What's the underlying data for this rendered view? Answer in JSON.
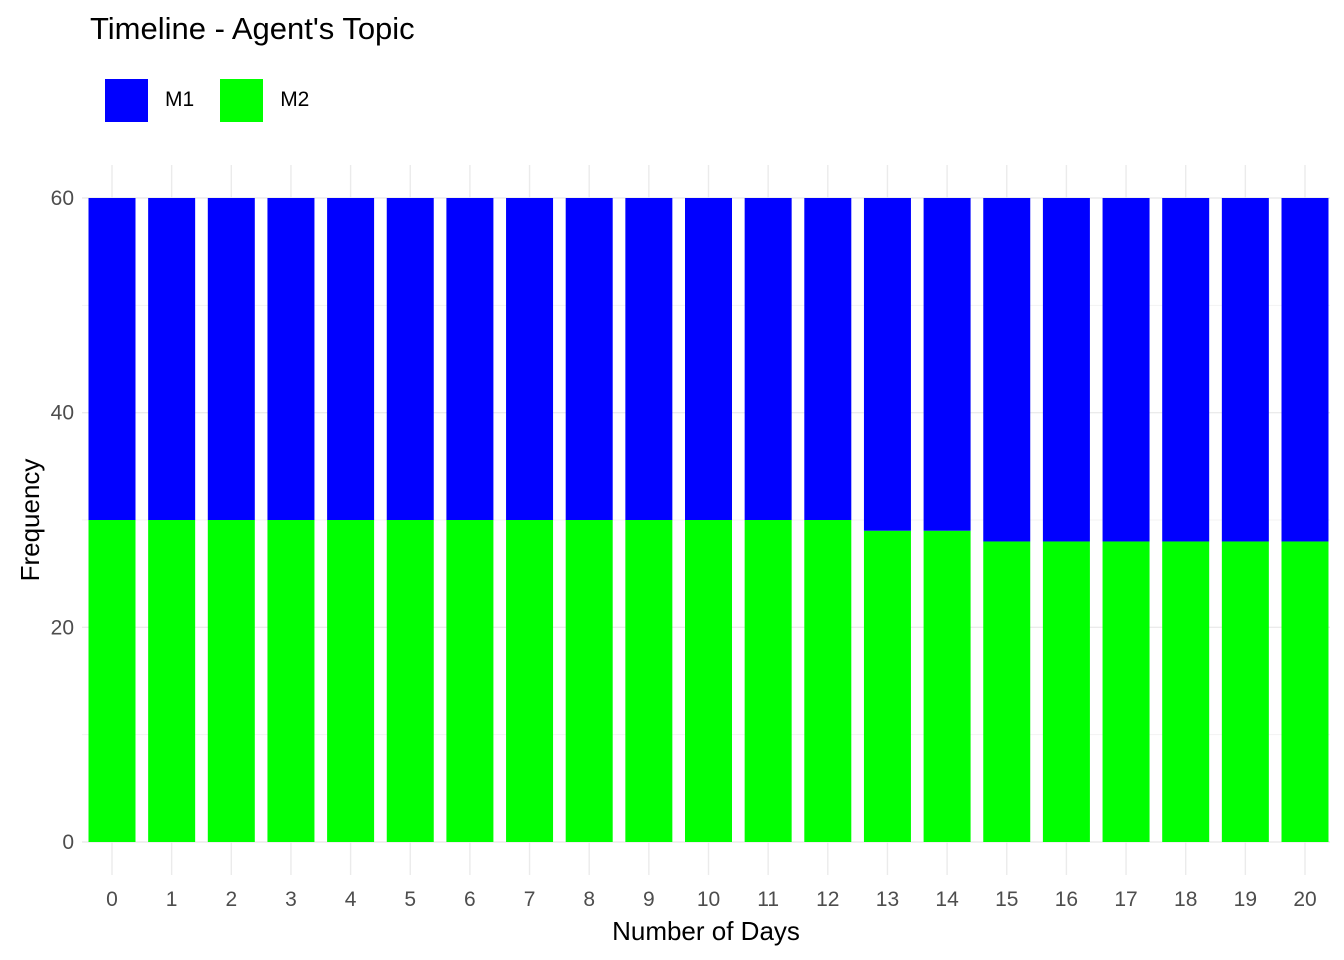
{
  "chart_data": {
    "type": "bar",
    "stacked": true,
    "title": "Timeline - Agent's Topic",
    "xlabel": "Number of Days",
    "ylabel": "Frequency",
    "categories": [
      "0",
      "1",
      "2",
      "3",
      "4",
      "5",
      "6",
      "7",
      "8",
      "9",
      "10",
      "11",
      "12",
      "13",
      "14",
      "15",
      "16",
      "17",
      "18",
      "19",
      "20"
    ],
    "ylim": [
      0,
      60
    ],
    "yticks": [
      0,
      20,
      40,
      60
    ],
    "grid": true,
    "legend_position": "top-left",
    "series": [
      {
        "name": "M1",
        "color": "#0000ff",
        "values": [
          30,
          30,
          30,
          30,
          30,
          30,
          30,
          30,
          30,
          30,
          30,
          30,
          30,
          31,
          31,
          32,
          32,
          32,
          32,
          32,
          32
        ]
      },
      {
        "name": "M2",
        "color": "#00ff00",
        "values": [
          30,
          30,
          30,
          30,
          30,
          30,
          30,
          30,
          30,
          30,
          30,
          30,
          30,
          29,
          29,
          28,
          28,
          28,
          28,
          28,
          28
        ]
      }
    ]
  }
}
